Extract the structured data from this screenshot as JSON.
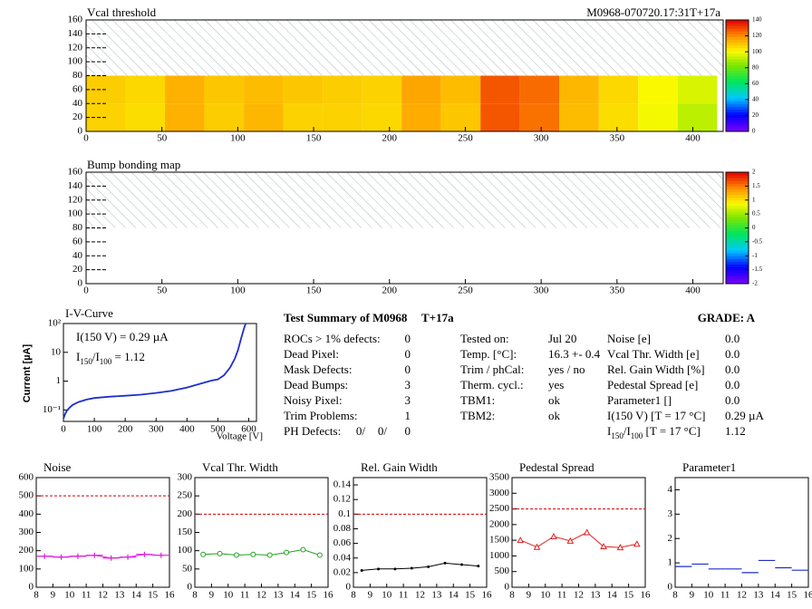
{
  "chart_data": [
    {
      "type": "heatmap",
      "title": "Vcal threshold",
      "subtitle": "M0968-070720.17:31T+17a",
      "xlim": [
        0,
        420
      ],
      "xticks": [
        0,
        50,
        100,
        150,
        200,
        250,
        300,
        350,
        400
      ],
      "ylim": [
        0,
        160
      ],
      "yticks": [
        0,
        20,
        40,
        60,
        80,
        100,
        120,
        140,
        160
      ],
      "x_bins": [
        0,
        26,
        52,
        78,
        104,
        130,
        156,
        182,
        208,
        234,
        260,
        286,
        312,
        338,
        364,
        390,
        416
      ],
      "y_bins": [
        0,
        40,
        80
      ],
      "z": [
        [
          108,
          106,
          114,
          109,
          113,
          108,
          108,
          107,
          115,
          110,
          128,
          124,
          112,
          106,
          100,
          92
        ],
        [
          109,
          107,
          114,
          110,
          112,
          110,
          109,
          108,
          116,
          112,
          128,
          125,
          113,
          107,
          101,
          96
        ]
      ],
      "zlim": [
        0,
        140
      ],
      "zticks": [
        0,
        20,
        40,
        60,
        80,
        100,
        120,
        140
      ]
    },
    {
      "type": "heatmap",
      "title": "Bump bonding map",
      "xlim": [
        0,
        420
      ],
      "xticks": [
        0,
        50,
        100,
        150,
        200,
        250,
        300,
        350,
        400
      ],
      "ylim": [
        0,
        160
      ],
      "yticks": [
        0,
        20,
        40,
        60,
        80,
        100,
        120,
        140,
        160
      ],
      "x_bins": [
        0,
        416
      ],
      "y_bins": [
        0,
        80
      ],
      "z": [
        [
          null
        ]
      ],
      "zlim": [
        -2,
        2
      ],
      "zticks": [
        -2,
        -1.5,
        -1,
        -0.5,
        0,
        0.5,
        1,
        1.5,
        2
      ]
    },
    {
      "type": "line",
      "title": "I-V-Curve",
      "xlabel": "Voltage [V]",
      "ylabel": "Current [µA]",
      "xlim": [
        0,
        625
      ],
      "xticks": [
        0,
        100,
        200,
        300,
        400,
        500,
        600
      ],
      "ylim": [
        0.04,
        100
      ],
      "log_y": true,
      "yticks": [
        {
          "value": 0.1,
          "label": "10⁻¹"
        },
        1,
        10,
        {
          "value": 100,
          "label": "10²"
        }
      ],
      "color": "#1c2fcc",
      "x": [
        0,
        5,
        10,
        20,
        30,
        50,
        75,
        100,
        150,
        200,
        250,
        300,
        350,
        400,
        450,
        480,
        500,
        520,
        540,
        555,
        565,
        575,
        585,
        590
      ],
      "values": [
        0.05,
        0.07,
        0.09,
        0.12,
        0.15,
        0.19,
        0.23,
        0.259,
        0.29,
        0.31,
        0.34,
        0.39,
        0.46,
        0.6,
        0.85,
        1.05,
        1.15,
        1.6,
        3,
        6,
        12,
        30,
        70,
        100
      ],
      "annotations": [
        [
          {
            "text": "I(150 V) = 0.29 µA"
          }
        ],
        [
          {
            "text": "I"
          },
          {
            "text": "150",
            "sub": true
          },
          {
            "text": "/I"
          },
          {
            "text": "100",
            "sub": true
          },
          {
            "text": " =  1.12"
          }
        ]
      ]
    },
    {
      "type": "line",
      "title": "Noise",
      "xlim": [
        8,
        16
      ],
      "xticks": [
        8,
        9,
        10,
        11,
        12,
        13,
        14,
        15,
        16
      ],
      "ylim": [
        0,
        600
      ],
      "yticks": [
        0,
        100,
        200,
        300,
        400,
        500,
        600
      ],
      "limit": 500,
      "x": [
        8.5,
        9.5,
        10.5,
        11.5,
        12.5,
        13.5,
        14.5,
        15.5
      ],
      "values": [
        170,
        165,
        170,
        175,
        160,
        165,
        180,
        175
      ],
      "color": "#e020e0",
      "marker": "plus",
      "xerr": 0.5,
      "connect": true
    },
    {
      "type": "line",
      "title": "Vcal Thr. Width",
      "xlim": [
        8,
        16
      ],
      "xticks": [
        8,
        9,
        10,
        11,
        12,
        13,
        14,
        15,
        16
      ],
      "ylim": [
        0,
        300
      ],
      "yticks": [
        0,
        50,
        100,
        150,
        200,
        250,
        300
      ],
      "limit": 200,
      "x": [
        8.5,
        9.5,
        10.5,
        11.5,
        12.5,
        13.5,
        14.5,
        15.5
      ],
      "values": [
        90,
        92,
        88,
        90,
        88,
        95,
        103,
        88
      ],
      "color": "#20a020",
      "marker": "circle",
      "connect": true
    },
    {
      "type": "line",
      "title": "Rel. Gain Width",
      "xlim": [
        8,
        16
      ],
      "xticks": [
        8,
        9,
        10,
        11,
        12,
        13,
        14,
        15,
        16
      ],
      "ylim": [
        0,
        0.15
      ],
      "yticks": [
        0,
        0.02,
        0.04,
        0.06,
        0.08,
        0.1,
        0.12,
        0.14
      ],
      "limit": 0.1,
      "x": [
        8.5,
        9.5,
        10.5,
        11.5,
        12.5,
        13.5,
        14.5,
        15.5
      ],
      "values": [
        0.023,
        0.025,
        0.025,
        0.026,
        0.028,
        0.033,
        0.031,
        0.029
      ],
      "color": "#000000",
      "marker": "dot",
      "connect": true
    },
    {
      "type": "line",
      "title": "Pedestal Spread",
      "xlim": [
        8,
        16
      ],
      "xticks": [
        8,
        9,
        10,
        11,
        12,
        13,
        14,
        15,
        16
      ],
      "ylim": [
        0,
        3500
      ],
      "yticks": [
        0,
        500,
        1000,
        1500,
        2000,
        2500,
        3000,
        3500
      ],
      "limit": 2500,
      "x": [
        8.5,
        9.5,
        10.5,
        11.5,
        12.5,
        13.5,
        14.5,
        15.5
      ],
      "values": [
        1500,
        1280,
        1620,
        1480,
        1750,
        1300,
        1270,
        1380
      ],
      "color": "#e02020",
      "marker": "triangle",
      "connect": true
    },
    {
      "type": "line",
      "title": "Parameter1",
      "xlim": [
        8,
        16
      ],
      "xticks": [
        8,
        9,
        10,
        11,
        12,
        13,
        14,
        15,
        16
      ],
      "ylim": [
        0,
        4.5
      ],
      "yticks": [
        0,
        1,
        2,
        3,
        4
      ],
      "x": [
        8.5,
        9.5,
        10.5,
        11.5,
        12.5,
        13.5,
        14.5,
        15.5
      ],
      "values": [
        0.85,
        0.95,
        0.75,
        0.75,
        0.6,
        1.1,
        0.8,
        0.7
      ],
      "color": "#1c2fcc",
      "marker": "none",
      "xerr": 0.5,
      "connect": false
    }
  ],
  "summary": {
    "title": "Test Summary of M0968",
    "tag": "T+17a",
    "grade": "GRADE:  A",
    "left": [
      [
        "ROCs > 1% defects:",
        "0"
      ],
      [
        "Dead Pixel:",
        "0"
      ],
      [
        "Mask Defects:",
        "0"
      ],
      [
        "Dead Bumps:",
        "3"
      ],
      [
        "Noisy Pixel:",
        "3"
      ],
      [
        "Trim Problems:",
        "1"
      ]
    ],
    "ph_label": "PH Defects:",
    "ph_values": [
      "0/",
      "0/",
      "0"
    ],
    "ph_colors": [
      "#000000",
      "#dd0000",
      "#0000cc"
    ],
    "middle": [
      [
        "Tested on:",
        "Jul 20"
      ],
      [
        "Temp. [°C]:",
        "16.3 +- 0.4"
      ],
      [
        "Trim / phCal:",
        "yes / no"
      ],
      [
        "Therm. cycl.:",
        "yes"
      ],
      [
        "TBM1:",
        "ok"
      ],
      [
        "TBM2:",
        "ok"
      ]
    ],
    "right": [
      [
        [
          {
            "text": "Noise [e]"
          }
        ],
        "0.0"
      ],
      [
        [
          {
            "text": "Vcal Thr. Width [e]"
          }
        ],
        "0.0"
      ],
      [
        [
          {
            "text": "Rel. Gain Width [%]"
          }
        ],
        "0.0"
      ],
      [
        [
          {
            "text": "Pedestal Spread [e]"
          }
        ],
        "0.0"
      ],
      [
        [
          {
            "text": "Parameter1 []"
          }
        ],
        "0.0"
      ],
      [
        [
          {
            "text": "I(150 V) [T = 17 °C]"
          }
        ],
        "0.29 µA"
      ],
      [
        [
          {
            "text": "I"
          },
          {
            "text": "150",
            "sub": true
          },
          {
            "text": "/I"
          },
          {
            "text": "100",
            "sub": true
          },
          {
            "text": "  [T = 17 °C]"
          }
        ],
        "1.12"
      ]
    ]
  }
}
